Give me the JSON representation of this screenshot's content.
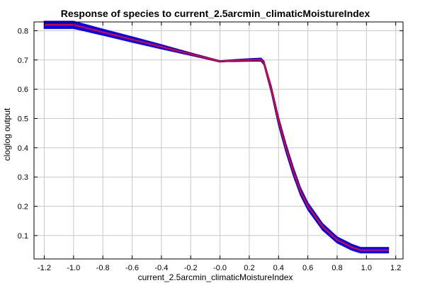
{
  "chart_data": {
    "type": "line",
    "title": "Response of species to current_2.5arcmin_climaticMoistureIndex",
    "xlabel": "current_2.5arcmin_climaticMoistureIndex",
    "ylabel": "cloglog output",
    "xlim": [
      -1.27,
      1.25
    ],
    "ylim": [
      0.02,
      0.83
    ],
    "x_ticks": [
      -1.2,
      -1.0,
      -0.8,
      -0.6,
      -0.4,
      -0.2,
      0.0,
      0.2,
      0.4,
      0.6,
      0.8,
      1.0,
      1.2
    ],
    "x_tick_labels": [
      "-1.2",
      "-1.0",
      "-0.8",
      "-0.6",
      "-0.4",
      "-0.2",
      "-0.0",
      "0.2",
      "0.4",
      "0.6",
      "0.8",
      "1.0",
      "1.2"
    ],
    "y_ticks": [
      0.1,
      0.2,
      0.3,
      0.4,
      0.5,
      0.6,
      0.7,
      0.8
    ],
    "y_tick_labels": [
      "0.1",
      "0.2",
      "0.3",
      "0.4",
      "0.5",
      "0.6",
      "0.7",
      "0.8"
    ],
    "grid": true,
    "series": [
      {
        "color": "#ff0000",
        "x": [
          -1.2,
          -1.0,
          -0.8,
          -0.6,
          -0.4,
          -0.2,
          0.0,
          0.05,
          0.1,
          0.2,
          0.28,
          0.3,
          0.35,
          0.4,
          0.45,
          0.5,
          0.55,
          0.6,
          0.7,
          0.8,
          0.9,
          0.96,
          1.0,
          1.15
        ],
        "y": [
          0.82,
          0.82,
          0.795,
          0.77,
          0.745,
          0.72,
          0.695,
          0.697,
          0.698,
          0.7,
          0.701,
          0.69,
          0.6,
          0.49,
          0.4,
          0.32,
          0.25,
          0.2,
          0.13,
          0.085,
          0.06,
          0.05,
          0.05,
          0.05
        ],
        "band": [
          0.012,
          0.012,
          0.01,
          0.009,
          0.007,
          0.004,
          0.002,
          0.002,
          0.003,
          0.004,
          0.005,
          0.006,
          0.01,
          0.013,
          0.014,
          0.014,
          0.013,
          0.012,
          0.011,
          0.01,
          0.01,
          0.009,
          0.009,
          0.009
        ]
      }
    ],
    "band_color": "#0000ff"
  }
}
